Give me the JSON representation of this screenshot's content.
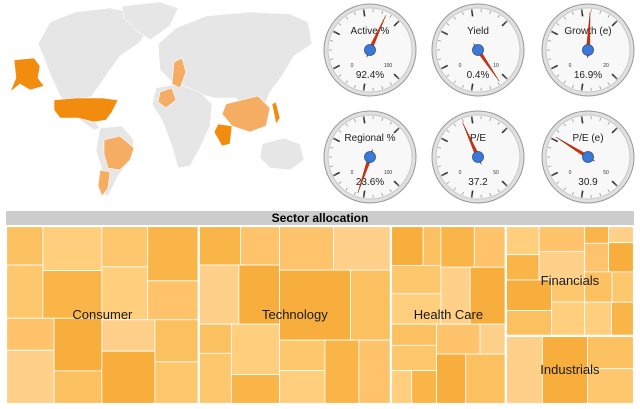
{
  "colors": {
    "highlight_country": "#f28c0f",
    "light_country": "#f5ad63",
    "land": "#e6e6e6",
    "needle": "#d32f0a",
    "hub": "#3c78d8",
    "treemap_palette": [
      "#fbc05f",
      "#fdc76d",
      "#ffcf7d",
      "#f9b547",
      "#fec36b",
      "#ffd08a",
      "#f7ae3c"
    ]
  },
  "gauges": [
    {
      "label": "Active %",
      "value_text": "92.4%",
      "value": 92.4,
      "min": 0,
      "max": 100,
      "min_label": "0",
      "max_label": "100"
    },
    {
      "label": "Yield",
      "value_text": "0.4%",
      "value": 0.4,
      "min": 0,
      "max": 10,
      "min_label": "0",
      "max_label": "10"
    },
    {
      "label": "Growth (e)",
      "value_text": "16.9%",
      "value": 16.9,
      "min": 0,
      "max": 20,
      "min_label": "0",
      "max_label": "20"
    },
    {
      "label": "Regional %",
      "value_text": "23.6%",
      "value": 23.6,
      "min": 0,
      "max": 100,
      "min_label": "0",
      "max_label": "100"
    },
    {
      "label": "P/E",
      "value_text": "37.2",
      "value": 37.2,
      "min": 0,
      "max": 50,
      "min_label": "0",
      "max_label": "50"
    },
    {
      "label": "P/E (e)",
      "value_text": "30.9",
      "value": 30.9,
      "min": 0,
      "max": 50,
      "min_label": "0",
      "max_label": "50"
    }
  ],
  "chart_data": {
    "type": "treemap",
    "title": "Sector allocation",
    "sectors": [
      {
        "name": "Consumer",
        "weight": 30.7
      },
      {
        "name": "Technology",
        "weight": 30.6
      },
      {
        "name": "Health Care",
        "weight": 18.3
      },
      {
        "name": "Financials",
        "weight": 12.6
      },
      {
        "name": "Industrials",
        "weight": 7.8
      }
    ]
  }
}
